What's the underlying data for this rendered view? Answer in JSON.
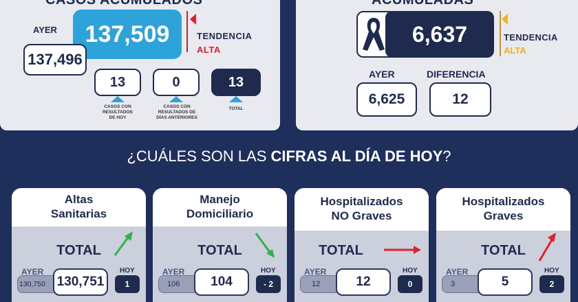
{
  "cases": {
    "title": "CASOS ACUMULADOS",
    "ayer_label": "AYER",
    "ayer_value": "137,496",
    "total_value": "137,509",
    "tendencia_label": "TENDENCIA",
    "tendencia_value": "ALTA",
    "breakdown": [
      {
        "value": "13",
        "caption_lines": [
          "CASOS CON",
          "RESULTADOS",
          "DE HOY"
        ]
      },
      {
        "value": "0",
        "caption_lines": [
          "CASOS CON",
          "RESULTADOS DE",
          "DÍAS ANTERIORES"
        ]
      },
      {
        "value": "13",
        "caption_lines": [
          "TOTAL"
        ]
      }
    ]
  },
  "deaths": {
    "title": "ACUMULADAS",
    "total_value": "6,637",
    "tendencia_label": "TENDENCIA",
    "tendencia_value": "ALTA",
    "ayer_label": "AYER",
    "ayer_value": "6,625",
    "diferencia_label": "DIFERENCIA",
    "diferencia_value": "12"
  },
  "banner": {
    "text_pre": "¿CUÁLES SON LAS ",
    "text_bold": "CIFRAS AL DÍA DE HOY",
    "text_post": "?"
  },
  "cards": [
    {
      "title_lines": [
        "Altas",
        "Sanitarias"
      ],
      "total_label": "TOTAL",
      "ayer_label": "AYER",
      "hoy_label": "HOY",
      "ayer_value": "130,750",
      "total_value": "130,751",
      "hoy_value": "1",
      "trend": "up",
      "trend_color": "#2db34a"
    },
    {
      "title_lines": [
        "Manejo",
        "Domiciliario"
      ],
      "total_label": "TOTAL",
      "ayer_label": "AYER",
      "hoy_label": "HOY",
      "ayer_value": "106",
      "total_value": "104",
      "hoy_value": "- 2",
      "trend": "down",
      "trend_color": "#2db34a"
    },
    {
      "title_lines": [
        "Hospitalizados",
        "NO Graves"
      ],
      "total_label": "TOTAL",
      "ayer_label": "AYER",
      "hoy_label": "HOY",
      "ayer_value": "12",
      "total_value": "12",
      "hoy_value": "0",
      "trend": "flat",
      "trend_color": "#e0202e"
    },
    {
      "title_lines": [
        "Hospitalizados",
        "Graves"
      ],
      "total_label": "TOTAL",
      "ayer_label": "AYER",
      "hoy_label": "HOY",
      "ayer_value": "3",
      "total_value": "5",
      "hoy_value": "2",
      "trend": "up",
      "trend_color": "#e0202e"
    }
  ],
  "colors": {
    "navy": "#1e2a4e",
    "cyan": "#2ea3d9",
    "red": "#e0202e",
    "gold": "#f0b323",
    "green": "#2db34a"
  }
}
